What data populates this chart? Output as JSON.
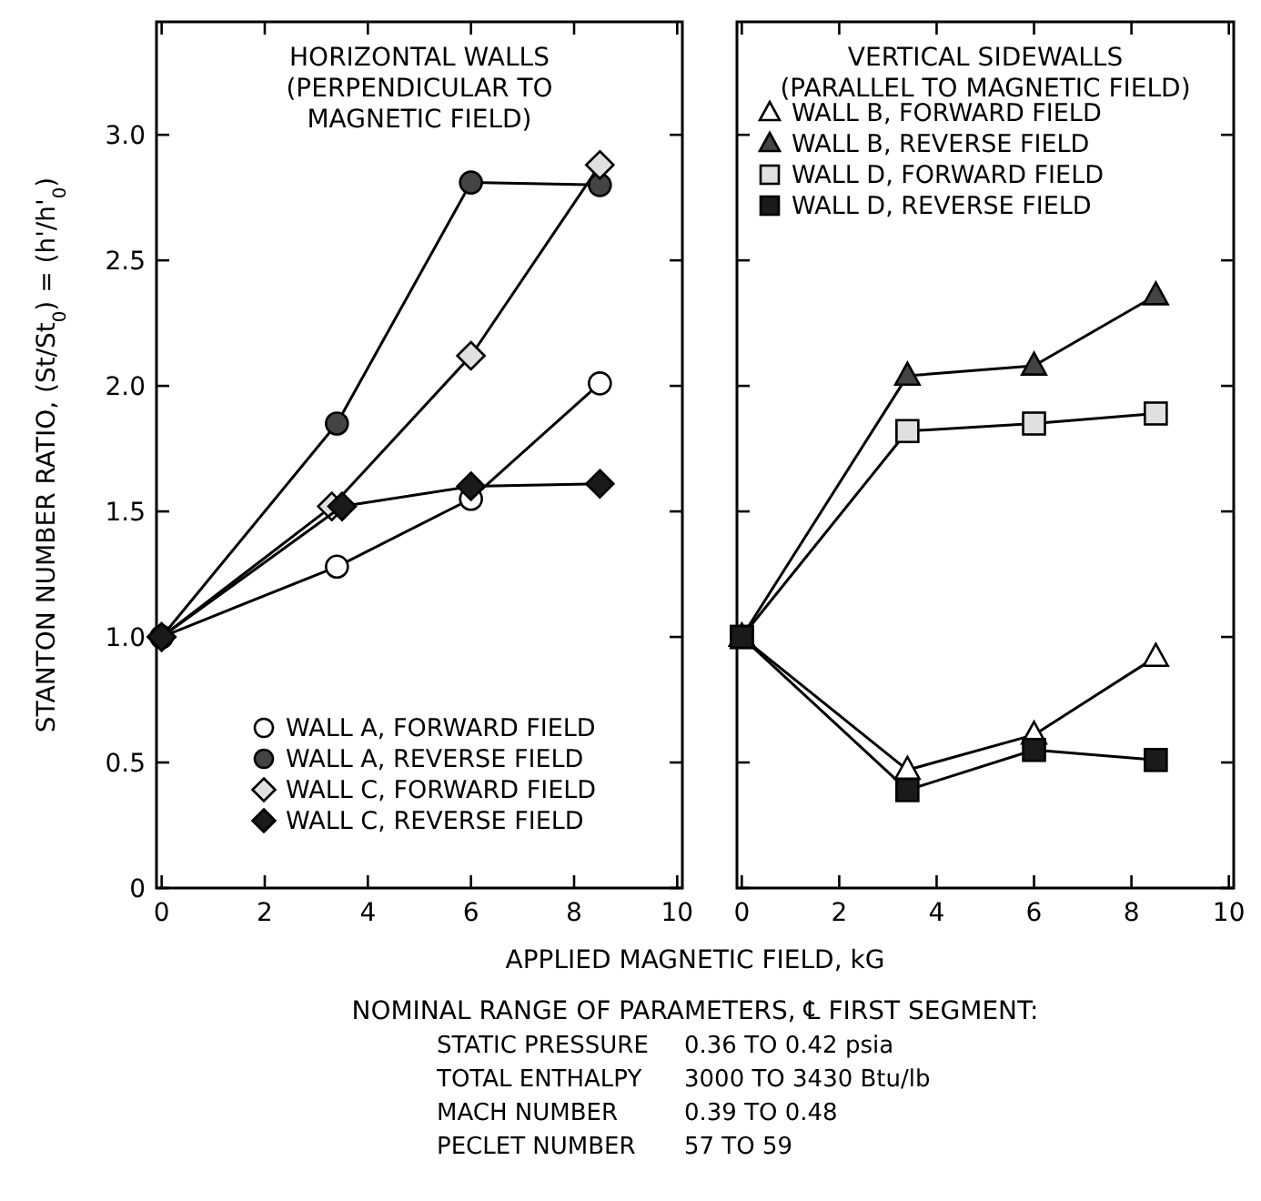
{
  "chart_data": [
    {
      "type": "line",
      "title": "HORIZONTAL WALLS\n(PERPENDICULAR TO\nMAGNETIC FIELD)",
      "ylabel": "STANTON NUMBER RATIO, (St/St$_{0}$) = (h'/h'$_{0}$)",
      "xlabel": "APPLIED MAGNETIC FIELD, kG",
      "xlim": [
        -0.1,
        10.1
      ],
      "ylim": [
        0,
        3.45
      ],
      "xticks": [
        0,
        2,
        4,
        6,
        8,
        10
      ],
      "legend": "bottom right",
      "grid": false,
      "yticks": [
        0,
        0.5,
        {
          "value": 1,
          "label": "1.0"
        },
        1.5,
        {
          "value": 2,
          "label": "2.0"
        },
        2.5,
        {
          "value": 3,
          "label": "3.0"
        }
      ],
      "annotations": [
        "NOMINAL RANGE OF PARAMETERS, ℄ FIRST SEGMENT:",
        "STATIC PRESSURE\t0.36 TO 0.42 psia",
        "TOTAL ENTHALPY\t3000 TO 3430 Btu/lb",
        "MACH NUMBER\t0.39 TO 0.48",
        "PECLET NUMBER\t57 TO 59"
      ],
      "series": [
        {
          "name": "WALL A, FORWARD FIELD",
          "color": "#ffffff",
          "marker": "circle",
          "x": [
            0,
            3.4,
            6,
            8.5
          ],
          "values": [
            1.0,
            1.28,
            1.55,
            2.01
          ]
        },
        {
          "name": "WALL A, REVERSE FIELD",
          "color": "#444444",
          "marker": "circle",
          "x": [
            0,
            3.4,
            6,
            8.5
          ],
          "values": [
            1.0,
            1.85,
            2.81,
            2.8
          ]
        },
        {
          "name": "WALL C, FORWARD FIELD",
          "color": "#e0e0e0",
          "marker": "diamond",
          "x": [
            0,
            3.3,
            6,
            8.5
          ],
          "values": [
            1.0,
            1.52,
            2.12,
            2.88
          ]
        },
        {
          "name": "WALL C, REVERSE FIELD",
          "color": "#1a1a1a",
          "marker": "diamond",
          "x": [
            0,
            3.5,
            6,
            8.5
          ],
          "values": [
            1.0,
            1.52,
            1.6,
            1.61
          ]
        }
      ]
    },
    {
      "type": "line",
      "title": "VERTICAL SIDEWALLS\n(PARALLEL TO MAGNETIC FIELD)",
      "xlim": [
        -0.1,
        10.1
      ],
      "ylim": [
        0,
        3.45
      ],
      "xticks": [
        0,
        2,
        4,
        6,
        8,
        10
      ],
      "tick_labels": "x",
      "legend": "top",
      "yticks": [
        0,
        0.5,
        1,
        1.5,
        2,
        2.5,
        3
      ],
      "grid": false,
      "series": [
        {
          "name": "WALL B, FORWARD FIELD",
          "color": "#ffffff",
          "marker": "triangle",
          "x": [
            0,
            3.4,
            6,
            8.5
          ],
          "values": [
            1.0,
            0.47,
            0.61,
            0.92
          ]
        },
        {
          "name": "WALL B, REVERSE FIELD",
          "color": "#444444",
          "marker": "triangle",
          "x": [
            0,
            3.4,
            6,
            8.5
          ],
          "values": [
            1.0,
            2.04,
            2.08,
            2.36
          ]
        },
        {
          "name": "WALL D, FORWARD FIELD",
          "color": "#e0e0e0",
          "marker": "square",
          "x": [
            0,
            3.4,
            6,
            8.5
          ],
          "values": [
            1.0,
            1.82,
            1.85,
            1.89
          ]
        },
        {
          "name": "WALL D, REVERSE FIELD",
          "color": "#1a1a1a",
          "marker": "square",
          "x": [
            0,
            3.4,
            6,
            8.5
          ],
          "values": [
            1.0,
            0.39,
            0.55,
            0.51
          ]
        }
      ]
    }
  ]
}
